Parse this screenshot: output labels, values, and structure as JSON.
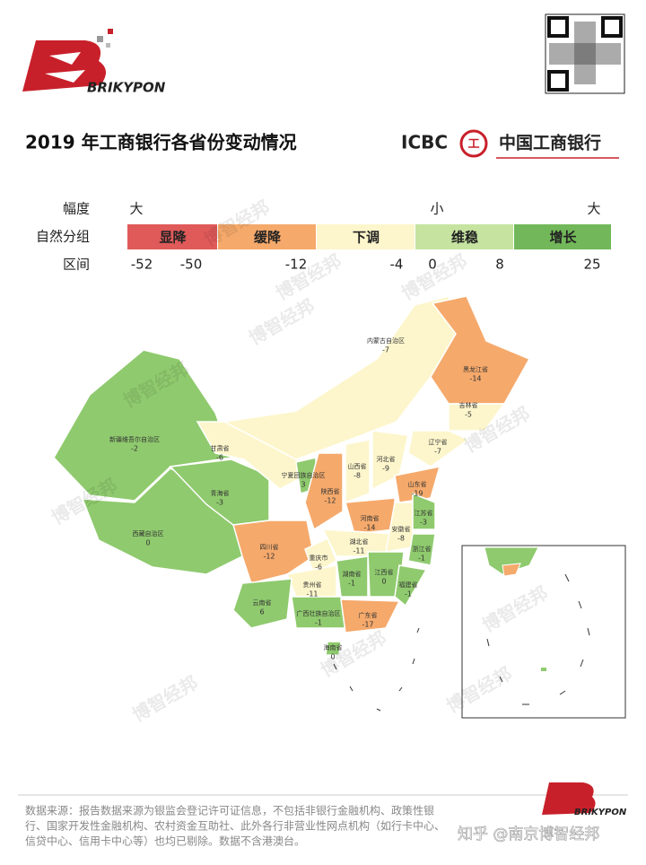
{
  "header": {
    "brand": "BRIKYPON",
    "title": "2019 年工商银行各省份变动情况",
    "bank_en": "ICBC",
    "bank_cn": "中国工商银行"
  },
  "legend": {
    "row_labels": [
      "幅度",
      "自然分组",
      "区间"
    ],
    "magnitude": [
      "大",
      "小",
      "大"
    ],
    "groups": [
      {
        "label": "显降",
        "color": "#e05a5a"
      },
      {
        "label": "缓降",
        "color": "#f5a96b"
      },
      {
        "label": "下调",
        "color": "#fdf6cc"
      },
      {
        "label": "维稳",
        "color": "#c6e4a0"
      },
      {
        "label": "增长",
        "color": "#72b85a"
      }
    ],
    "breaks": [
      -52,
      -50,
      -12,
      -4,
      0,
      8,
      25
    ]
  },
  "provinces": [
    {
      "name": "新疆维吾尔自治区",
      "value": -2,
      "color": "#8fca6e"
    },
    {
      "name": "西藏自治区",
      "value": 0,
      "color": "#8fca6e"
    },
    {
      "name": "青海省",
      "value": -3,
      "color": "#8fca6e"
    },
    {
      "name": "甘肃省",
      "value": -6,
      "color": "#fdf6cc"
    },
    {
      "name": "内蒙古自治区",
      "value": -7,
      "color": "#fdf6cc"
    },
    {
      "name": "黑龙江省",
      "value": -14,
      "color": "#f5a96b"
    },
    {
      "name": "吉林省",
      "value": -5,
      "color": "#fdf6cc"
    },
    {
      "name": "辽宁省",
      "value": -7,
      "color": "#fdf6cc"
    },
    {
      "name": "宁夏回族自治区",
      "value": 3,
      "color": "#8fca6e"
    },
    {
      "name": "陕西省",
      "value": -12,
      "color": "#f5a96b"
    },
    {
      "name": "山西省",
      "value": -8,
      "color": "#fdf6cc"
    },
    {
      "name": "河北省",
      "value": -9,
      "color": "#fdf6cc"
    },
    {
      "name": "山东省",
      "value": -19,
      "color": "#f5a96b"
    },
    {
      "name": "河南省",
      "value": -14,
      "color": "#f5a96b"
    },
    {
      "name": "四川省",
      "value": -12,
      "color": "#f5a96b"
    },
    {
      "name": "重庆市",
      "value": -6,
      "color": "#fdf6cc"
    },
    {
      "name": "湖北省",
      "value": -11,
      "color": "#fdf6cc"
    },
    {
      "name": "安徽省",
      "value": -8,
      "color": "#fdf6cc"
    },
    {
      "name": "江苏省",
      "value": -3,
      "color": "#8fca6e"
    },
    {
      "name": "浙江省",
      "value": -1,
      "color": "#8fca6e"
    },
    {
      "name": "湖南省",
      "value": -1,
      "color": "#8fca6e"
    },
    {
      "name": "江西省",
      "value": 0,
      "color": "#8fca6e"
    },
    {
      "name": "福建省",
      "value": -1,
      "color": "#8fca6e"
    },
    {
      "name": "贵州省",
      "value": -11,
      "color": "#fdf6cc"
    },
    {
      "name": "云南省",
      "value": 6,
      "color": "#8fca6e"
    },
    {
      "name": "广西壮族自治区",
      "value": -1,
      "color": "#8fca6e"
    },
    {
      "name": "广东省",
      "value": -17,
      "color": "#f5a96b"
    },
    {
      "name": "海南省",
      "value": 0,
      "color": "#8fca6e"
    }
  ],
  "watermark": "博智经邦",
  "footer": {
    "lines": [
      "数据来源：报告数据来源为银监会登记许可证信息，不包括非银行金融机构、政策性银",
      "行、国家开发性金融机构、农村资金互助社、此外各行非营业性网点机构（如行卡中心、",
      "信贷中心、信用卡中心等）也均已剔除。数据不含港澳台。"
    ],
    "credit": "知乎 @南京博智经邦"
  }
}
